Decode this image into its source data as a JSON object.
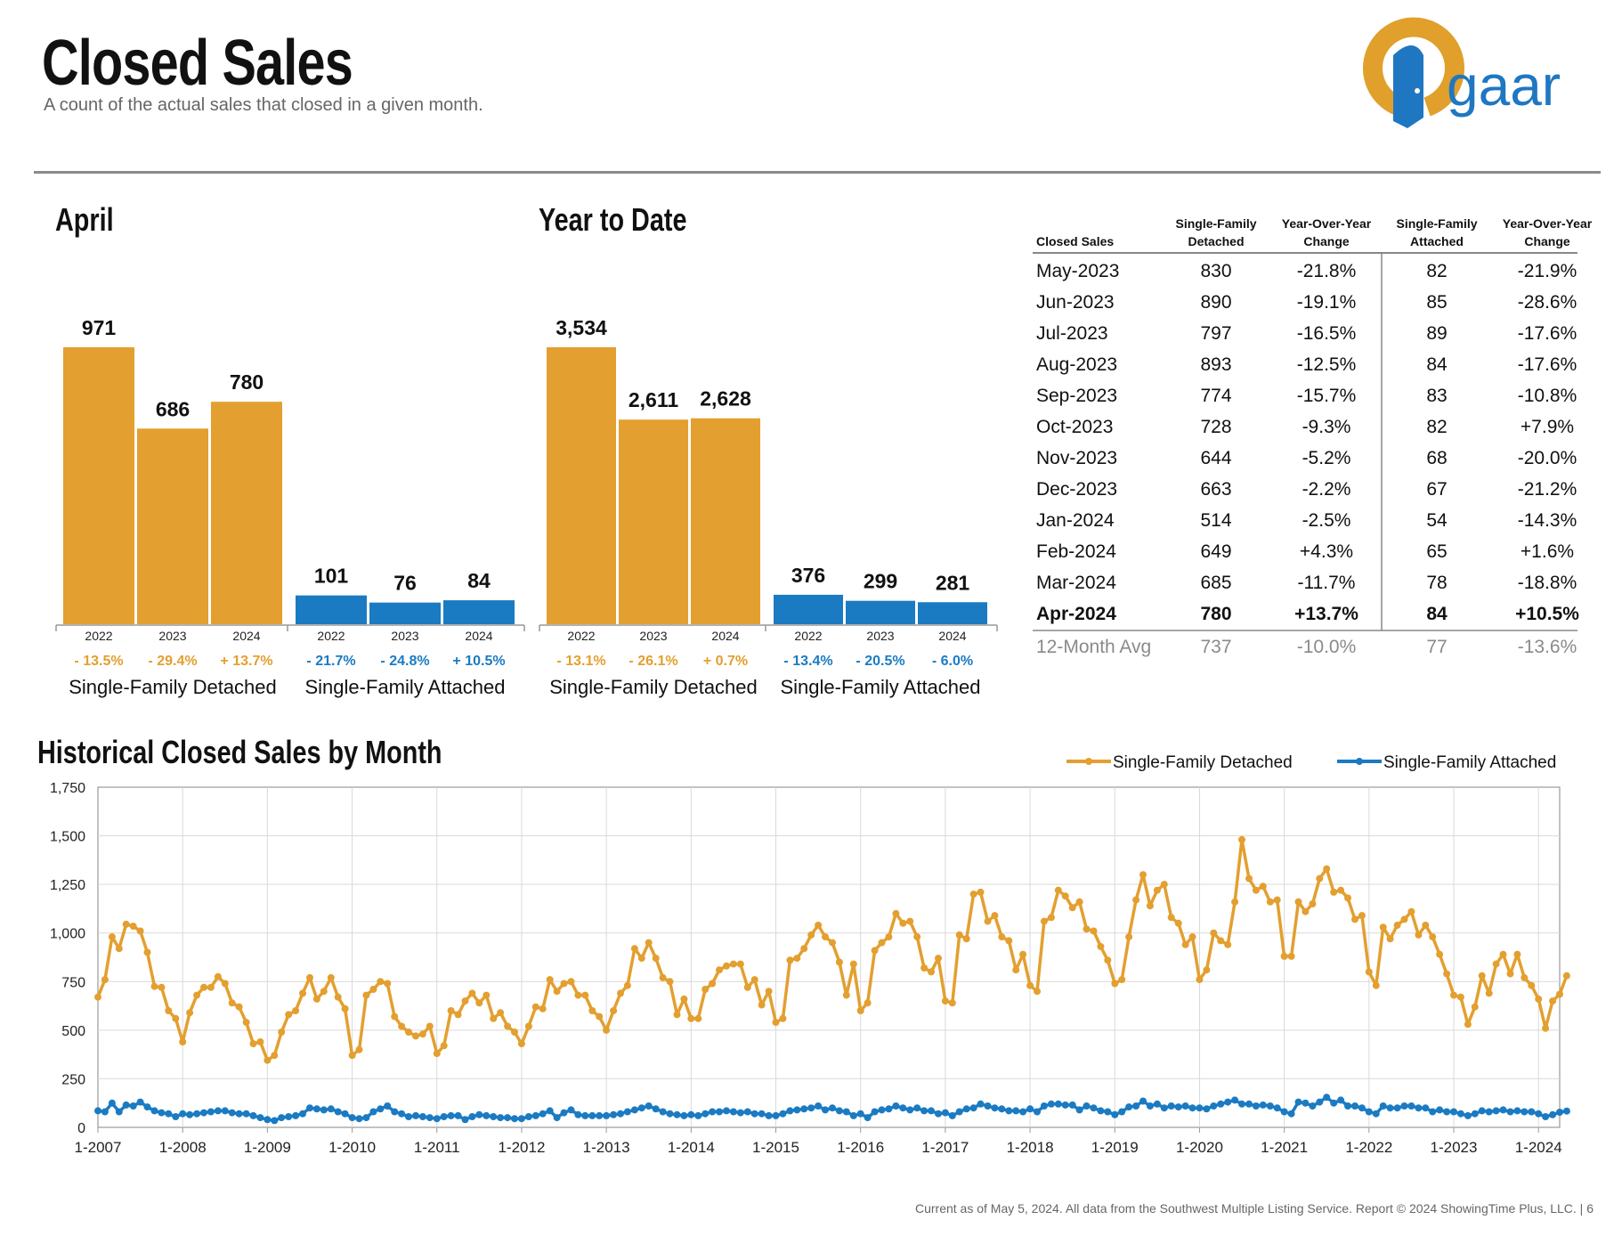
{
  "header": {
    "title": "Closed Sales",
    "subtitle": "A count of the actual sales that closed in a given month."
  },
  "logo": {
    "text": "gaar",
    "colors": {
      "ring": "#e0a02b",
      "door": "#1f77c2",
      "text": "#1f77c2"
    }
  },
  "colors": {
    "detached": "#e39f2f",
    "attached": "#1b7bc2",
    "grid": "#d9d9d9"
  },
  "april": {
    "title": "April",
    "groups": [
      {
        "name": "Single-Family Detached",
        "bars": [
          {
            "year": "2022",
            "value": 971,
            "label": "971",
            "change": "- 13.5%"
          },
          {
            "year": "2023",
            "value": 686,
            "label": "686",
            "change": "- 29.4%"
          },
          {
            "year": "2024",
            "value": 780,
            "label": "780",
            "change": "+ 13.7%"
          }
        ]
      },
      {
        "name": "Single-Family Attached",
        "bars": [
          {
            "year": "2022",
            "value": 101,
            "label": "101",
            "change": "- 21.7%"
          },
          {
            "year": "2023",
            "value": 76,
            "label": "76",
            "change": "- 24.8%"
          },
          {
            "year": "2024",
            "value": 84,
            "label": "84",
            "change": "+ 10.5%"
          }
        ]
      }
    ]
  },
  "ytd": {
    "title": "Year to Date",
    "groups": [
      {
        "name": "Single-Family Detached",
        "bars": [
          {
            "year": "2022",
            "value": 3534,
            "label": "3,534",
            "change": "- 13.1%"
          },
          {
            "year": "2023",
            "value": 2611,
            "label": "2,611",
            "change": "- 26.1%"
          },
          {
            "year": "2024",
            "value": 2628,
            "label": "2,628",
            "change": "+ 0.7%"
          }
        ]
      },
      {
        "name": "Single-Family Attached",
        "bars": [
          {
            "year": "2022",
            "value": 376,
            "label": "376",
            "change": "- 13.4%"
          },
          {
            "year": "2023",
            "value": 299,
            "label": "299",
            "change": "- 20.5%"
          },
          {
            "year": "2024",
            "value": 281,
            "label": "281",
            "change": "- 6.0%"
          }
        ]
      }
    ]
  },
  "table": {
    "headers": [
      "Closed Sales",
      "Single-Family Detached",
      "Year-Over-Year Change",
      "Single-Family Attached",
      "Year-Over-Year Change"
    ],
    "rows": [
      [
        "May-2023",
        "830",
        "-21.8%",
        "82",
        "-21.9%"
      ],
      [
        "Jun-2023",
        "890",
        "-19.1%",
        "85",
        "-28.6%"
      ],
      [
        "Jul-2023",
        "797",
        "-16.5%",
        "89",
        "-17.6%"
      ],
      [
        "Aug-2023",
        "893",
        "-12.5%",
        "84",
        "-17.6%"
      ],
      [
        "Sep-2023",
        "774",
        "-15.7%",
        "83",
        "-10.8%"
      ],
      [
        "Oct-2023",
        "728",
        "-9.3%",
        "82",
        "+7.9%"
      ],
      [
        "Nov-2023",
        "644",
        "-5.2%",
        "68",
        "-20.0%"
      ],
      [
        "Dec-2023",
        "663",
        "-2.2%",
        "67",
        "-21.2%"
      ],
      [
        "Jan-2024",
        "514",
        "-2.5%",
        "54",
        "-14.3%"
      ],
      [
        "Feb-2024",
        "649",
        "+4.3%",
        "65",
        "+1.6%"
      ],
      [
        "Mar-2024",
        "685",
        "-11.7%",
        "78",
        "-18.8%"
      ],
      [
        "Apr-2024",
        "780",
        "+13.7%",
        "84",
        "+10.5%"
      ]
    ],
    "avg": [
      "12-Month Avg",
      "737",
      "-10.0%",
      "77",
      "-13.6%"
    ]
  },
  "historical": {
    "title": "Historical Closed Sales by Month",
    "legend": [
      "Single-Family Detached",
      "Single-Family Attached"
    ],
    "y_ticks": [
      "0",
      "250",
      "500",
      "750",
      "1,000",
      "1,250",
      "1,500",
      "1,750"
    ],
    "x_ticks": [
      "1-2007",
      "1-2008",
      "1-2009",
      "1-2010",
      "1-2011",
      "1-2012",
      "1-2013",
      "1-2014",
      "1-2015",
      "1-2016",
      "1-2017",
      "1-2018",
      "1-2019",
      "1-2020",
      "1-2021",
      "1-2022",
      "1-2023",
      "1-2024"
    ]
  },
  "chart_data": [
    {
      "type": "bar",
      "title": "April",
      "categories": [
        "2022",
        "2023",
        "2024"
      ],
      "series": [
        {
          "name": "Single-Family Detached",
          "values": [
            971,
            686,
            780
          ]
        },
        {
          "name": "Single-Family Attached",
          "values": [
            101,
            76,
            84
          ]
        }
      ]
    },
    {
      "type": "bar",
      "title": "Year to Date",
      "categories": [
        "2022",
        "2023",
        "2024"
      ],
      "series": [
        {
          "name": "Single-Family Detached",
          "values": [
            3534,
            2611,
            2628
          ]
        },
        {
          "name": "Single-Family Attached",
          "values": [
            376,
            299,
            281
          ]
        }
      ]
    },
    {
      "type": "line",
      "title": "Historical Closed Sales by Month",
      "ylim": [
        0,
        1750
      ],
      "x_start": "1-2007",
      "x_end": "4-2024",
      "series": [
        {
          "name": "Single-Family Detached",
          "values": [
            670,
            760,
            980,
            920,
            1045,
            1035,
            1010,
            900,
            725,
            720,
            600,
            560,
            440,
            590,
            680,
            720,
            720,
            775,
            740,
            640,
            620,
            540,
            430,
            440,
            345,
            370,
            490,
            580,
            600,
            690,
            770,
            660,
            700,
            770,
            670,
            610,
            370,
            400,
            680,
            710,
            750,
            740,
            570,
            520,
            490,
            470,
            480,
            520,
            380,
            420,
            600,
            580,
            650,
            690,
            640,
            680,
            560,
            590,
            520,
            490,
            430,
            520,
            620,
            610,
            760,
            700,
            740,
            750,
            680,
            680,
            600,
            570,
            500,
            600,
            690,
            730,
            920,
            870,
            950,
            870,
            770,
            750,
            580,
            660,
            560,
            560,
            710,
            740,
            810,
            830,
            840,
            840,
            720,
            760,
            630,
            700,
            540,
            560,
            860,
            870,
            920,
            990,
            1040,
            980,
            950,
            850,
            680,
            840,
            600,
            640,
            910,
            950,
            980,
            1100,
            1050,
            1060,
            980,
            820,
            800,
            870,
            650,
            640,
            990,
            970,
            1200,
            1210,
            1060,
            1090,
            980,
            960,
            810,
            890,
            730,
            700,
            1060,
            1080,
            1220,
            1190,
            1130,
            1160,
            1020,
            1010,
            930,
            860,
            740,
            760,
            980,
            1170,
            1300,
            1140,
            1220,
            1250,
            1080,
            1050,
            940,
            980,
            760,
            810,
            1000,
            960,
            940,
            1160,
            1480,
            1280,
            1220,
            1240,
            1160,
            1170,
            880,
            880,
            1160,
            1110,
            1150,
            1280,
            1330,
            1210,
            1220,
            1180,
            1070,
            1090,
            800,
            730,
            1030,
            970,
            1040,
            1070,
            1110,
            990,
            1040,
            980,
            890,
            790,
            680,
            670,
            530,
            620,
            780,
            690,
            840,
            890,
            790,
            890,
            770,
            730,
            660,
            510,
            650,
            685,
            780
          ]
        },
        {
          "name": "Single-Family Attached",
          "values": [
            85,
            80,
            125,
            80,
            115,
            110,
            130,
            105,
            85,
            75,
            70,
            55,
            70,
            65,
            70,
            75,
            80,
            85,
            85,
            75,
            70,
            70,
            60,
            50,
            40,
            35,
            50,
            55,
            60,
            70,
            100,
            95,
            90,
            95,
            80,
            70,
            50,
            45,
            50,
            80,
            95,
            110,
            80,
            70,
            55,
            60,
            55,
            50,
            45,
            55,
            60,
            60,
            40,
            55,
            65,
            60,
            55,
            50,
            50,
            45,
            45,
            55,
            60,
            70,
            85,
            50,
            75,
            90,
            65,
            60,
            60,
            60,
            60,
            65,
            70,
            80,
            90,
            100,
            110,
            95,
            80,
            70,
            65,
            60,
            65,
            60,
            70,
            80,
            80,
            85,
            80,
            75,
            80,
            70,
            70,
            60,
            60,
            70,
            85,
            90,
            95,
            100,
            110,
            90,
            100,
            85,
            80,
            60,
            70,
            50,
            80,
            90,
            95,
            110,
            100,
            90,
            100,
            85,
            85,
            70,
            75,
            60,
            80,
            95,
            100,
            120,
            110,
            100,
            95,
            85,
            85,
            80,
            95,
            80,
            110,
            120,
            120,
            115,
            115,
            90,
            110,
            100,
            85,
            80,
            65,
            80,
            105,
            110,
            135,
            110,
            120,
            100,
            110,
            105,
            110,
            100,
            100,
            95,
            110,
            120,
            130,
            140,
            120,
            120,
            110,
            115,
            110,
            100,
            80,
            70,
            130,
            125,
            110,
            130,
            155,
            125,
            140,
            110,
            110,
            100,
            80,
            70,
            110,
            100,
            100,
            110,
            110,
            100,
            100,
            80,
            90,
            80,
            80,
            70,
            60,
            70,
            85,
            80,
            85,
            90,
            80,
            85,
            80,
            80,
            70,
            55,
            65,
            78,
            84
          ]
        }
      ]
    }
  ],
  "footer": "Current as of May 5, 2024. All data from the Southwest Multiple Listing Service. Report © 2024 ShowingTime Plus, LLC.  |  6"
}
